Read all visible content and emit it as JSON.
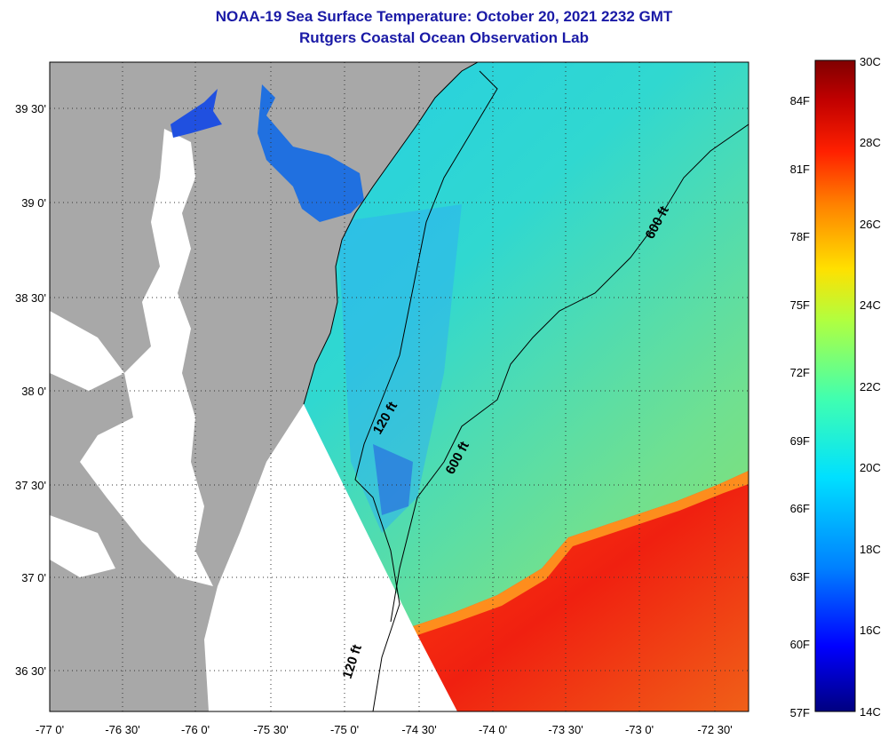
{
  "title": "NOAA-19 Sea Surface Temperature:  October 20, 2021 2232 GMT",
  "subtitle": "Rutgers Coastal Ocean Observation Lab",
  "latitude_labels": [
    "39 30'",
    "39 0'",
    "38 30'",
    "38 0'",
    "37 30'",
    "37 0'",
    "36 30'"
  ],
  "longitude_labels": [
    "-77 0'",
    "-76 30'",
    "-76 0'",
    "-75 30'",
    "-75 0'",
    "-74 30'",
    "-74 0'",
    "-73 30'",
    "-73 0'",
    "-72 30'"
  ],
  "colorbar": {
    "fahrenheit_labels": [
      "84F",
      "81F",
      "78F",
      "75F",
      "72F",
      "69F",
      "66F",
      "63F",
      "60F",
      "57F"
    ],
    "celsius_labels": [
      "30C",
      "28C",
      "26C",
      "24C",
      "22C",
      "20C",
      "18C",
      "16C",
      "14C"
    ],
    "colors": [
      "#000080",
      "#0000ff",
      "#0080ff",
      "#00e0ff",
      "#40ffb0",
      "#b0ff40",
      "#ffe000",
      "#ff8000",
      "#ff2000",
      "#c00000",
      "#800000"
    ]
  },
  "contour_labels": [
    "120 ft",
    "600 ft",
    "600 ft",
    "120 ft"
  ],
  "colors": {
    "land": "#a8a8a8",
    "no_data": "#ffffff",
    "warm_water": "#f03010",
    "cool_water": "#20c8f0",
    "bay_water": "#2060e0",
    "title": "#1a1aa6"
  }
}
